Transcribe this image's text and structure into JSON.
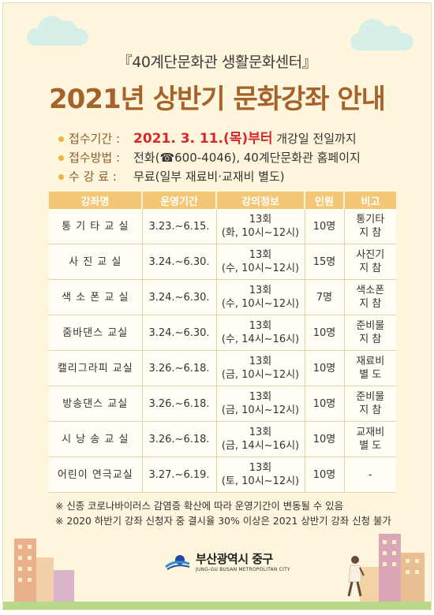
{
  "header": {
    "subtitle": "『40계단문화관 생활문화센터』",
    "title": "2021년 상반기 문화강좌 안내"
  },
  "info": [
    {
      "key": "접수기간 :",
      "highlight": "2021. 3. 11.(목)부터",
      "value": " 개강일 전일까지"
    },
    {
      "key": "접수방법 :",
      "highlight": "",
      "value": "전화(☎600-4046), 40계단문화관 홈페이지"
    },
    {
      "key": "수 강 료 :",
      "highlight": "",
      "value": "무료(일부 재료비·교재비 별도)"
    }
  ],
  "table": {
    "headers": [
      "강좌명",
      "운영기간",
      "강의정보",
      "인원",
      "비고"
    ],
    "rows": [
      {
        "name": "통 기 타  교 실",
        "period": "3.23.~6.15.",
        "info1": "13회",
        "info2": "(화, 10시~12시)",
        "people": "10명",
        "note1": "통기타",
        "note2": "지 참"
      },
      {
        "name": "사  진  교  실",
        "period": "3.24.~6.30.",
        "info1": "13회",
        "info2": "(수, 10시~12시)",
        "people": "15명",
        "note1": "사진기",
        "note2": "지 참"
      },
      {
        "name": "색 소 폰  교 실",
        "period": "3.24.~6.30.",
        "info1": "13회",
        "info2": "(수, 10시~12시)",
        "people": "7명",
        "note1": "색소폰",
        "note2": "지 참"
      },
      {
        "name": "줌바댄스 교실",
        "period": "3.24.~6.30.",
        "info1": "13회",
        "info2": "(수, 14시~16시)",
        "people": "10명",
        "note1": "준비물",
        "note2": "지 참"
      },
      {
        "name": "캘리그라피 교실",
        "period": "3.26.~6.18.",
        "info1": "13회",
        "info2": "(금, 10시~12시)",
        "people": "10명",
        "note1": "재료비",
        "note2": "별 도"
      },
      {
        "name": "방송댄스 교실",
        "period": "3.26.~6.18.",
        "info1": "13회",
        "info2": "(금, 10시~12시)",
        "people": "10명",
        "note1": "준비물",
        "note2": "지 참"
      },
      {
        "name": "시 낭 송  교 실",
        "period": "3.26.~6.18.",
        "info1": "13회",
        "info2": "(금, 14시~16시)",
        "people": "10명",
        "note1": "교재비",
        "note2": "별 도"
      },
      {
        "name": "어린이 연극교실",
        "period": "3.27.~6.19.",
        "info1": "13회",
        "info2": "(토, 10시~12시)",
        "people": "10명",
        "note1": "-",
        "note2": ""
      }
    ]
  },
  "notes": [
    "※ 신종 코로나바이러스 감염증 확산에 따라 운영기간이 변동될 수 있음",
    "※ 2020 하반기 강좌 신청자 중 결시율 30% 이상은 2021 상반기 강좌 신청 불가"
  ],
  "logo": {
    "name_ko": "부산광역시 중구",
    "name_en": "JUNG-GU BUSAN METROPOLITAN CITY",
    "icon": "busan-junggu-emblem-icon"
  },
  "colors": {
    "background": "#fdf6dc",
    "title": "#a5622a",
    "highlight": "#d7262d",
    "table_header": "#f4c776",
    "course_name": "#2f3f7f",
    "bullet": "#f2b234"
  },
  "decorations": {
    "clouds": "cloud-icon",
    "buildings": "building-icon",
    "person": "walking-person-icon"
  }
}
